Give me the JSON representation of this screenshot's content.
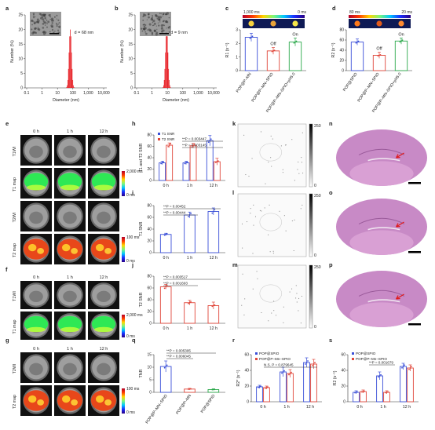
{
  "panel_letters": {
    "a": "a",
    "b": "b",
    "c": "c",
    "d": "d",
    "e": "e",
    "f": "f",
    "g": "g",
    "h": "h",
    "i": "i",
    "j": "j",
    "k": "k",
    "l": "l",
    "m": "m",
    "n": "n",
    "o": "o",
    "p": "p",
    "q": "q",
    "r": "r",
    "s": "s"
  },
  "colors": {
    "blue": "#3a4fd8",
    "red": "#e0463a",
    "green": "#2aa84a",
    "he_pink": "#c88ac6",
    "mri_bg": "#111111"
  },
  "mri": {
    "time_labels": [
      "0 h",
      "1 h",
      "12 h"
    ],
    "e_rows": [
      "T1WI",
      "T1 map",
      "T2WI",
      "T2 map"
    ],
    "f_rows": [
      "T1WI",
      "T1 map"
    ],
    "g_rows": [
      "T2WI",
      "T2 map"
    ],
    "e_t1_scale": [
      "2,000 ms",
      "0 ms"
    ],
    "e_t2_scale": [
      "100 ms",
      "0 ms"
    ],
    "f_scale": [
      "2,000 ms",
      "0 ms"
    ],
    "g_scale": [
      "100 ms",
      "0 ms"
    ]
  },
  "klm_scale": {
    "max": "250",
    "min": "0"
  },
  "chart_data": [
    {
      "id": "a",
      "type": "bar",
      "xlabel": "Diameter (nm)",
      "ylabel": "Number (%)",
      "xticks": [
        "0.1",
        "1",
        "10",
        "100",
        "1,000",
        "10,000"
      ],
      "yticks": [
        "0",
        "5",
        "10",
        "15",
        "20",
        "25"
      ],
      "ylim": [
        0,
        25
      ],
      "annotation": "d = 68 nm",
      "peak_diameter_nm": 68,
      "peak_value": 20
    },
    {
      "id": "b",
      "type": "bar",
      "xlabel": "Diameter (nm)",
      "ylabel": "Number (%)",
      "xticks": [
        "0.1",
        "1",
        "10",
        "100",
        "1,000",
        "10,000"
      ],
      "yticks": [
        "0",
        "5",
        "10",
        "15",
        "20",
        "25"
      ],
      "ylim": [
        0,
        25
      ],
      "annotation": "d = 9 nm",
      "peak_diameter_nm": 9,
      "peak_value": 20
    },
    {
      "id": "c",
      "type": "bar",
      "ylabel": "R1 (s⁻¹)",
      "yticks": [
        "0",
        "1",
        "2",
        "3"
      ],
      "ylim": [
        0,
        3
      ],
      "colorbar": [
        "1,000 ms",
        "0 ms"
      ],
      "categories": [
        "POP@P–MN",
        "POP@P–MN–SPIO",
        "POP@P–MN–SPIO+pH5.0"
      ],
      "values": [
        2.45,
        1.45,
        2.1
      ],
      "errors": [
        0.3,
        0.25,
        0.3
      ],
      "labels": [
        "",
        "Off",
        "On"
      ]
    },
    {
      "id": "d",
      "type": "bar",
      "ylabel": "R2 (s⁻¹)",
      "yticks": [
        "0",
        "20",
        "40",
        "60",
        "80"
      ],
      "ylim": [
        0,
        80
      ],
      "colorbar": [
        "80 ms",
        "20 ms"
      ],
      "categories": [
        "POP@SPIO",
        "POP@P–MN–SPIO",
        "POP@P–MN–SPIO+pH5.0"
      ],
      "values": [
        56,
        30,
        58
      ],
      "errors": [
        6,
        6,
        6
      ],
      "labels": [
        "",
        "Off",
        "On"
      ]
    },
    {
      "id": "h",
      "type": "bar",
      "ylabel": "T1 and T2 SNR",
      "yticks": [
        "0",
        "20",
        "40",
        "60",
        "80"
      ],
      "ylim": [
        0,
        80
      ],
      "categories": [
        "0 h",
        "1 h",
        "12 h"
      ],
      "series": [
        {
          "name": "T1 SNR",
          "values": [
            31,
            31,
            70
          ],
          "errors": [
            3,
            3,
            9
          ]
        },
        {
          "name": "T2 SNR",
          "values": [
            62,
            61,
            33
          ],
          "errors": [
            4,
            4,
            6
          ]
        }
      ],
      "annotations": [
        "**P = 0.003447",
        "**P = 0.003145"
      ]
    },
    {
      "id": "i",
      "type": "bar",
      "ylabel": "T1 SNR",
      "yticks": [
        "0",
        "20",
        "40",
        "60",
        "80"
      ],
      "ylim": [
        0,
        80
      ],
      "categories": [
        "0 h",
        "1 h",
        "12 h"
      ],
      "values": [
        31,
        64,
        70
      ],
      "errors": [
        2,
        5,
        6
      ],
      "annotations": [
        "**P = 0.00452",
        "**P = 0.00444"
      ]
    },
    {
      "id": "j",
      "type": "bar",
      "ylabel": "T2 SNR",
      "yticks": [
        "0",
        "20",
        "40",
        "60",
        "80"
      ],
      "ylim": [
        0,
        80
      ],
      "categories": [
        "0 h",
        "1 h",
        "12 h"
      ],
      "values": [
        62,
        35,
        30
      ],
      "errors": [
        4,
        4,
        6
      ],
      "annotations": [
        "**P = 0.003517",
        "**P = 0.001693"
      ]
    },
    {
      "id": "q",
      "type": "bar",
      "ylabel": "TNR",
      "yticks": [
        "0",
        "5",
        "10",
        "15"
      ],
      "ylim": [
        0,
        15
      ],
      "categories": [
        "POP@P–MN–SPIO",
        "POP@P–MN",
        "POP@SPIO"
      ],
      "values": [
        10.3,
        1.3,
        1.1
      ],
      "errors": [
        2.2,
        0.3,
        0.3
      ],
      "annotations": [
        "**P = 0.005395",
        "**P = 0.006045"
      ]
    },
    {
      "id": "r",
      "type": "bar",
      "ylabel": "R2* (s⁻¹)",
      "yticks": [
        "0",
        "20",
        "40",
        "60"
      ],
      "ylim": [
        0,
        60
      ],
      "categories": [
        "0 h",
        "1 h",
        "12 h"
      ],
      "series": [
        {
          "name": "POP@SPIO",
          "values": [
            19,
            38,
            50
          ],
          "errors": [
            2,
            6,
            6
          ]
        },
        {
          "name": "POP@P–Mn–SPIO",
          "values": [
            18,
            36,
            48
          ],
          "errors": [
            2,
            5,
            6
          ]
        }
      ],
      "annotations": [
        "N.S. P = 0.879645"
      ]
    },
    {
      "id": "s",
      "type": "bar",
      "ylabel": "R2 (s⁻¹)",
      "yticks": [
        "0",
        "20",
        "40",
        "60"
      ],
      "ylim": [
        0,
        60
      ],
      "categories": [
        "0 h",
        "1 h",
        "12 h"
      ],
      "series": [
        {
          "name": "POP@SPIO",
          "values": [
            12,
            33,
            45
          ],
          "errors": [
            2,
            5,
            4
          ]
        },
        {
          "name": "POP@P–Mn–SPIO",
          "values": [
            13,
            12,
            43
          ],
          "errors": [
            2,
            2,
            4
          ]
        }
      ],
      "annotations": [
        "**P = 0.001679"
      ]
    }
  ]
}
